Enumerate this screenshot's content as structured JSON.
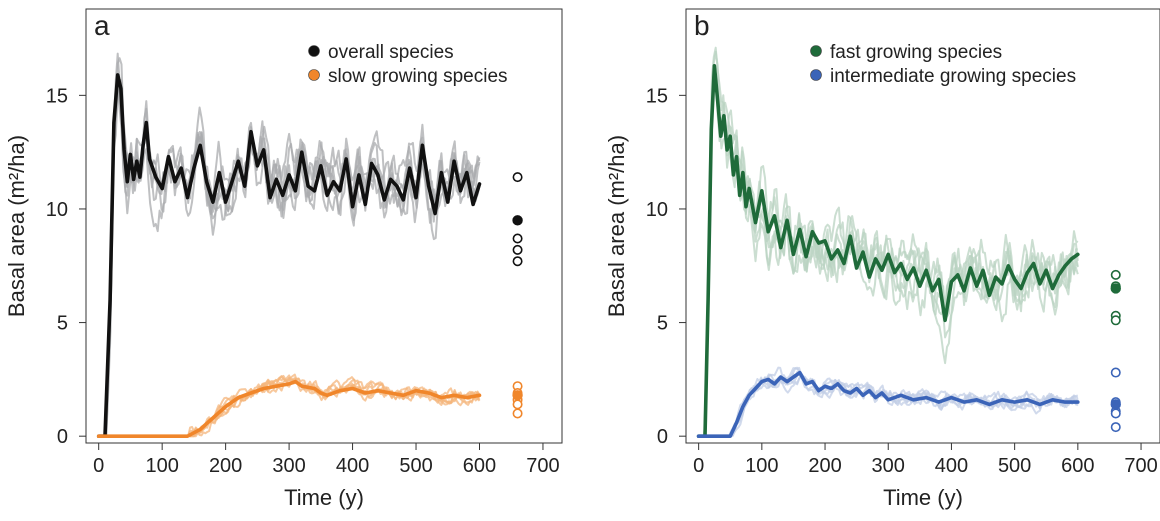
{
  "chart_data": [
    {
      "type": "line",
      "panel_label": "a",
      "xlabel": "Time (y)",
      "ylabel": "Basal area (m²/ha)",
      "xlim": [
        -20,
        730
      ],
      "ylim": [
        -0.3,
        18.8
      ],
      "xticks": [
        0,
        100,
        200,
        300,
        400,
        500,
        600,
        700
      ],
      "yticks": [
        0,
        5,
        10,
        15
      ],
      "legend_position": "top-right",
      "legend": [
        {
          "label": "overall species",
          "color": "#111111"
        },
        {
          "label": "slow growing species",
          "color": "#f0862b"
        }
      ],
      "series": [
        {
          "name": "overall species",
          "color": "#111111",
          "replicate_color": "#a9abad",
          "replicate_count": 6,
          "mean_line": [
            [
              0,
              0
            ],
            [
              10,
              0
            ],
            [
              18,
              6
            ],
            [
              24,
              13.8
            ],
            [
              30,
              15.9
            ],
            [
              35,
              15.3
            ],
            [
              40,
              12.6
            ],
            [
              45,
              11.2
            ],
            [
              50,
              12.4
            ],
            [
              55,
              11.3
            ],
            [
              60,
              12.1
            ],
            [
              65,
              11.4
            ],
            [
              70,
              12.8
            ],
            [
              75,
              13.8
            ],
            [
              80,
              12.2
            ],
            [
              90,
              11.4
            ],
            [
              100,
              10.9
            ],
            [
              110,
              12.3
            ],
            [
              120,
              11.2
            ],
            [
              130,
              11.8
            ],
            [
              140,
              10.5
            ],
            [
              150,
              11.8
            ],
            [
              160,
              12.8
            ],
            [
              170,
              11.2
            ],
            [
              180,
              10.3
            ],
            [
              190,
              11.6
            ],
            [
              200,
              10.3
            ],
            [
              210,
              11.2
            ],
            [
              220,
              12.1
            ],
            [
              230,
              11.0
            ],
            [
              240,
              13.4
            ],
            [
              250,
              11.9
            ],
            [
              260,
              12.6
            ],
            [
              270,
              10.5
            ],
            [
              280,
              11.3
            ],
            [
              290,
              10.6
            ],
            [
              300,
              11.5
            ],
            [
              310,
              10.8
            ],
            [
              320,
              12.5
            ],
            [
              330,
              11.0
            ],
            [
              340,
              10.8
            ],
            [
              350,
              11.9
            ],
            [
              360,
              10.6
            ],
            [
              370,
              11.2
            ],
            [
              380,
              10.8
            ],
            [
              390,
              12.2
            ],
            [
              400,
              10.1
            ],
            [
              410,
              11.5
            ],
            [
              420,
              10.2
            ],
            [
              430,
              12.0
            ],
            [
              440,
              11.5
            ],
            [
              450,
              10.4
            ],
            [
              460,
              11.3
            ],
            [
              470,
              11.0
            ],
            [
              480,
              10.4
            ],
            [
              490,
              11.8
            ],
            [
              500,
              10.5
            ],
            [
              510,
              12.8
            ],
            [
              520,
              11.0
            ],
            [
              530,
              9.8
            ],
            [
              540,
              11.6
            ],
            [
              550,
              10.3
            ],
            [
              560,
              12.1
            ],
            [
              570,
              10.8
            ],
            [
              580,
              11.6
            ],
            [
              590,
              10.2
            ],
            [
              600,
              11.1
            ]
          ],
          "final_points": {
            "filled": [
              9.5
            ],
            "open": [
              11.4,
              8.7,
              8.2,
              7.7
            ]
          }
        },
        {
          "name": "slow growing species",
          "color": "#f0862b",
          "replicate_color": "#f4b67c",
          "replicate_count": 6,
          "mean_line": [
            [
              0,
              0
            ],
            [
              140,
              0
            ],
            [
              160,
              0.3
            ],
            [
              180,
              0.8
            ],
            [
              200,
              1.3
            ],
            [
              220,
              1.7
            ],
            [
              240,
              1.9
            ],
            [
              260,
              2.1
            ],
            [
              280,
              2.2
            ],
            [
              300,
              2.3
            ],
            [
              310,
              2.4
            ],
            [
              320,
              2.2
            ],
            [
              340,
              2.1
            ],
            [
              350,
              1.9
            ],
            [
              360,
              1.8
            ],
            [
              380,
              2.0
            ],
            [
              400,
              2.1
            ],
            [
              420,
              1.9
            ],
            [
              440,
              2.0
            ],
            [
              460,
              1.9
            ],
            [
              480,
              1.8
            ],
            [
              500,
              2.0
            ],
            [
              520,
              1.9
            ],
            [
              540,
              1.7
            ],
            [
              560,
              1.8
            ],
            [
              580,
              1.7
            ],
            [
              600,
              1.8
            ]
          ],
          "final_points": {
            "filled": [
              1.8
            ],
            "open": [
              2.2,
              1.9,
              1.6,
              1.4,
              1.0
            ]
          }
        }
      ]
    },
    {
      "type": "line",
      "panel_label": "b",
      "xlabel": "Time (y)",
      "ylabel": "Basal area (m²/ha)",
      "xlim": [
        -20,
        730
      ],
      "ylim": [
        -0.3,
        18.8
      ],
      "xticks": [
        0,
        100,
        200,
        300,
        400,
        500,
        600,
        700
      ],
      "yticks": [
        0,
        5,
        10,
        15
      ],
      "legend_position": "top-right",
      "legend": [
        {
          "label": "fast growing species",
          "color": "#1f6b3a"
        },
        {
          "label": "intermediate growing species",
          "color": "#3b64b8"
        }
      ],
      "series": [
        {
          "name": "fast growing species",
          "color": "#1f6b3a",
          "replicate_color": "#b9d3c1",
          "replicate_count": 6,
          "mean_line": [
            [
              0,
              0
            ],
            [
              10,
              0
            ],
            [
              15,
              6
            ],
            [
              20,
              13.5
            ],
            [
              25,
              16.3
            ],
            [
              30,
              14.8
            ],
            [
              35,
              13.2
            ],
            [
              40,
              14.1
            ],
            [
              45,
              12.6
            ],
            [
              50,
              13.2
            ],
            [
              55,
              11.5
            ],
            [
              60,
              12.3
            ],
            [
              65,
              10.6
            ],
            [
              70,
              11.6
            ],
            [
              75,
              10.1
            ],
            [
              80,
              10.9
            ],
            [
              90,
              9.4
            ],
            [
              100,
              10.8
            ],
            [
              110,
              9.0
            ],
            [
              120,
              9.7
            ],
            [
              130,
              8.3
            ],
            [
              140,
              9.5
            ],
            [
              150,
              8.0
            ],
            [
              160,
              9.1
            ],
            [
              170,
              7.9
            ],
            [
              180,
              9.0
            ],
            [
              190,
              8.5
            ],
            [
              200,
              8.6
            ],
            [
              210,
              7.8
            ],
            [
              220,
              8.2
            ],
            [
              230,
              7.6
            ],
            [
              240,
              8.8
            ],
            [
              250,
              7.4
            ],
            [
              260,
              8.1
            ],
            [
              270,
              7.0
            ],
            [
              280,
              7.8
            ],
            [
              290,
              7.3
            ],
            [
              300,
              8.0
            ],
            [
              310,
              7.2
            ],
            [
              320,
              7.6
            ],
            [
              330,
              6.9
            ],
            [
              340,
              7.4
            ],
            [
              350,
              6.6
            ],
            [
              360,
              7.3
            ],
            [
              370,
              6.4
            ],
            [
              380,
              6.9
            ],
            [
              390,
              5.1
            ],
            [
              400,
              6.8
            ],
            [
              410,
              7.1
            ],
            [
              420,
              6.4
            ],
            [
              430,
              7.4
            ],
            [
              440,
              6.6
            ],
            [
              450,
              7.3
            ],
            [
              460,
              6.2
            ],
            [
              470,
              7.0
            ],
            [
              480,
              6.7
            ],
            [
              490,
              7.5
            ],
            [
              500,
              6.9
            ],
            [
              510,
              6.5
            ],
            [
              520,
              7.2
            ],
            [
              530,
              7.6
            ],
            [
              540,
              6.7
            ],
            [
              550,
              7.3
            ],
            [
              560,
              6.5
            ],
            [
              570,
              7.1
            ],
            [
              580,
              7.5
            ],
            [
              590,
              7.8
            ],
            [
              600,
              8.0
            ]
          ],
          "final_points": {
            "filled": [
              6.5
            ],
            "open": [
              7.1,
              6.6,
              5.3,
              5.1
            ]
          }
        },
        {
          "name": "intermediate growing species",
          "color": "#3b64b8",
          "replicate_color": "#c2cde6",
          "replicate_count": 6,
          "mean_line": [
            [
              0,
              0
            ],
            [
              50,
              0
            ],
            [
              60,
              0.6
            ],
            [
              70,
              1.3
            ],
            [
              80,
              1.8
            ],
            [
              90,
              2.1
            ],
            [
              100,
              2.4
            ],
            [
              110,
              2.5
            ],
            [
              120,
              2.3
            ],
            [
              130,
              2.6
            ],
            [
              140,
              2.4
            ],
            [
              150,
              2.6
            ],
            [
              160,
              2.8
            ],
            [
              170,
              2.3
            ],
            [
              180,
              2.4
            ],
            [
              190,
              2.0
            ],
            [
              200,
              2.2
            ],
            [
              210,
              2.1
            ],
            [
              220,
              2.3
            ],
            [
              230,
              2.0
            ],
            [
              240,
              1.9
            ],
            [
              250,
              2.1
            ],
            [
              260,
              1.8
            ],
            [
              270,
              2.0
            ],
            [
              280,
              1.7
            ],
            [
              290,
              1.9
            ],
            [
              300,
              1.6
            ],
            [
              320,
              1.8
            ],
            [
              340,
              1.6
            ],
            [
              360,
              1.7
            ],
            [
              380,
              1.5
            ],
            [
              400,
              1.7
            ],
            [
              420,
              1.5
            ],
            [
              440,
              1.6
            ],
            [
              460,
              1.4
            ],
            [
              480,
              1.6
            ],
            [
              500,
              1.5
            ],
            [
              520,
              1.6
            ],
            [
              540,
              1.4
            ],
            [
              560,
              1.6
            ],
            [
              580,
              1.5
            ],
            [
              600,
              1.5
            ]
          ],
          "final_points": {
            "filled": [
              1.4
            ],
            "open": [
              2.8,
              1.5,
              1.1,
              1.0,
              0.4
            ]
          }
        }
      ]
    }
  ]
}
